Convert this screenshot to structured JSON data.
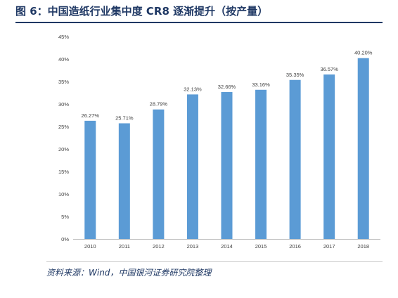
{
  "header": {
    "title": "图 6：中国造纸行业集中度 CR8 逐渐提升（按产量）"
  },
  "footer": {
    "source": "资料来源：Wind，中国银河证券研究院整理"
  },
  "chart_data": {
    "type": "bar",
    "categories": [
      "2010",
      "2011",
      "2012",
      "2013",
      "2014",
      "2015",
      "2016",
      "2017",
      "2018"
    ],
    "values": [
      26.27,
      25.71,
      28.79,
      32.13,
      32.66,
      33.16,
      35.35,
      36.57,
      40.2
    ],
    "data_labels": [
      "26.27%",
      "25.71%",
      "28.79%",
      "32.13%",
      "32.66%",
      "33.16%",
      "35.35%",
      "36.57%",
      "40.20%"
    ],
    "y_ticks": [
      "0%",
      "5%",
      "10%",
      "15%",
      "20%",
      "25%",
      "30%",
      "35%",
      "40%",
      "45%"
    ],
    "ylim": [
      0,
      45
    ],
    "grid": false,
    "bar_color": "#5b9bd5"
  }
}
